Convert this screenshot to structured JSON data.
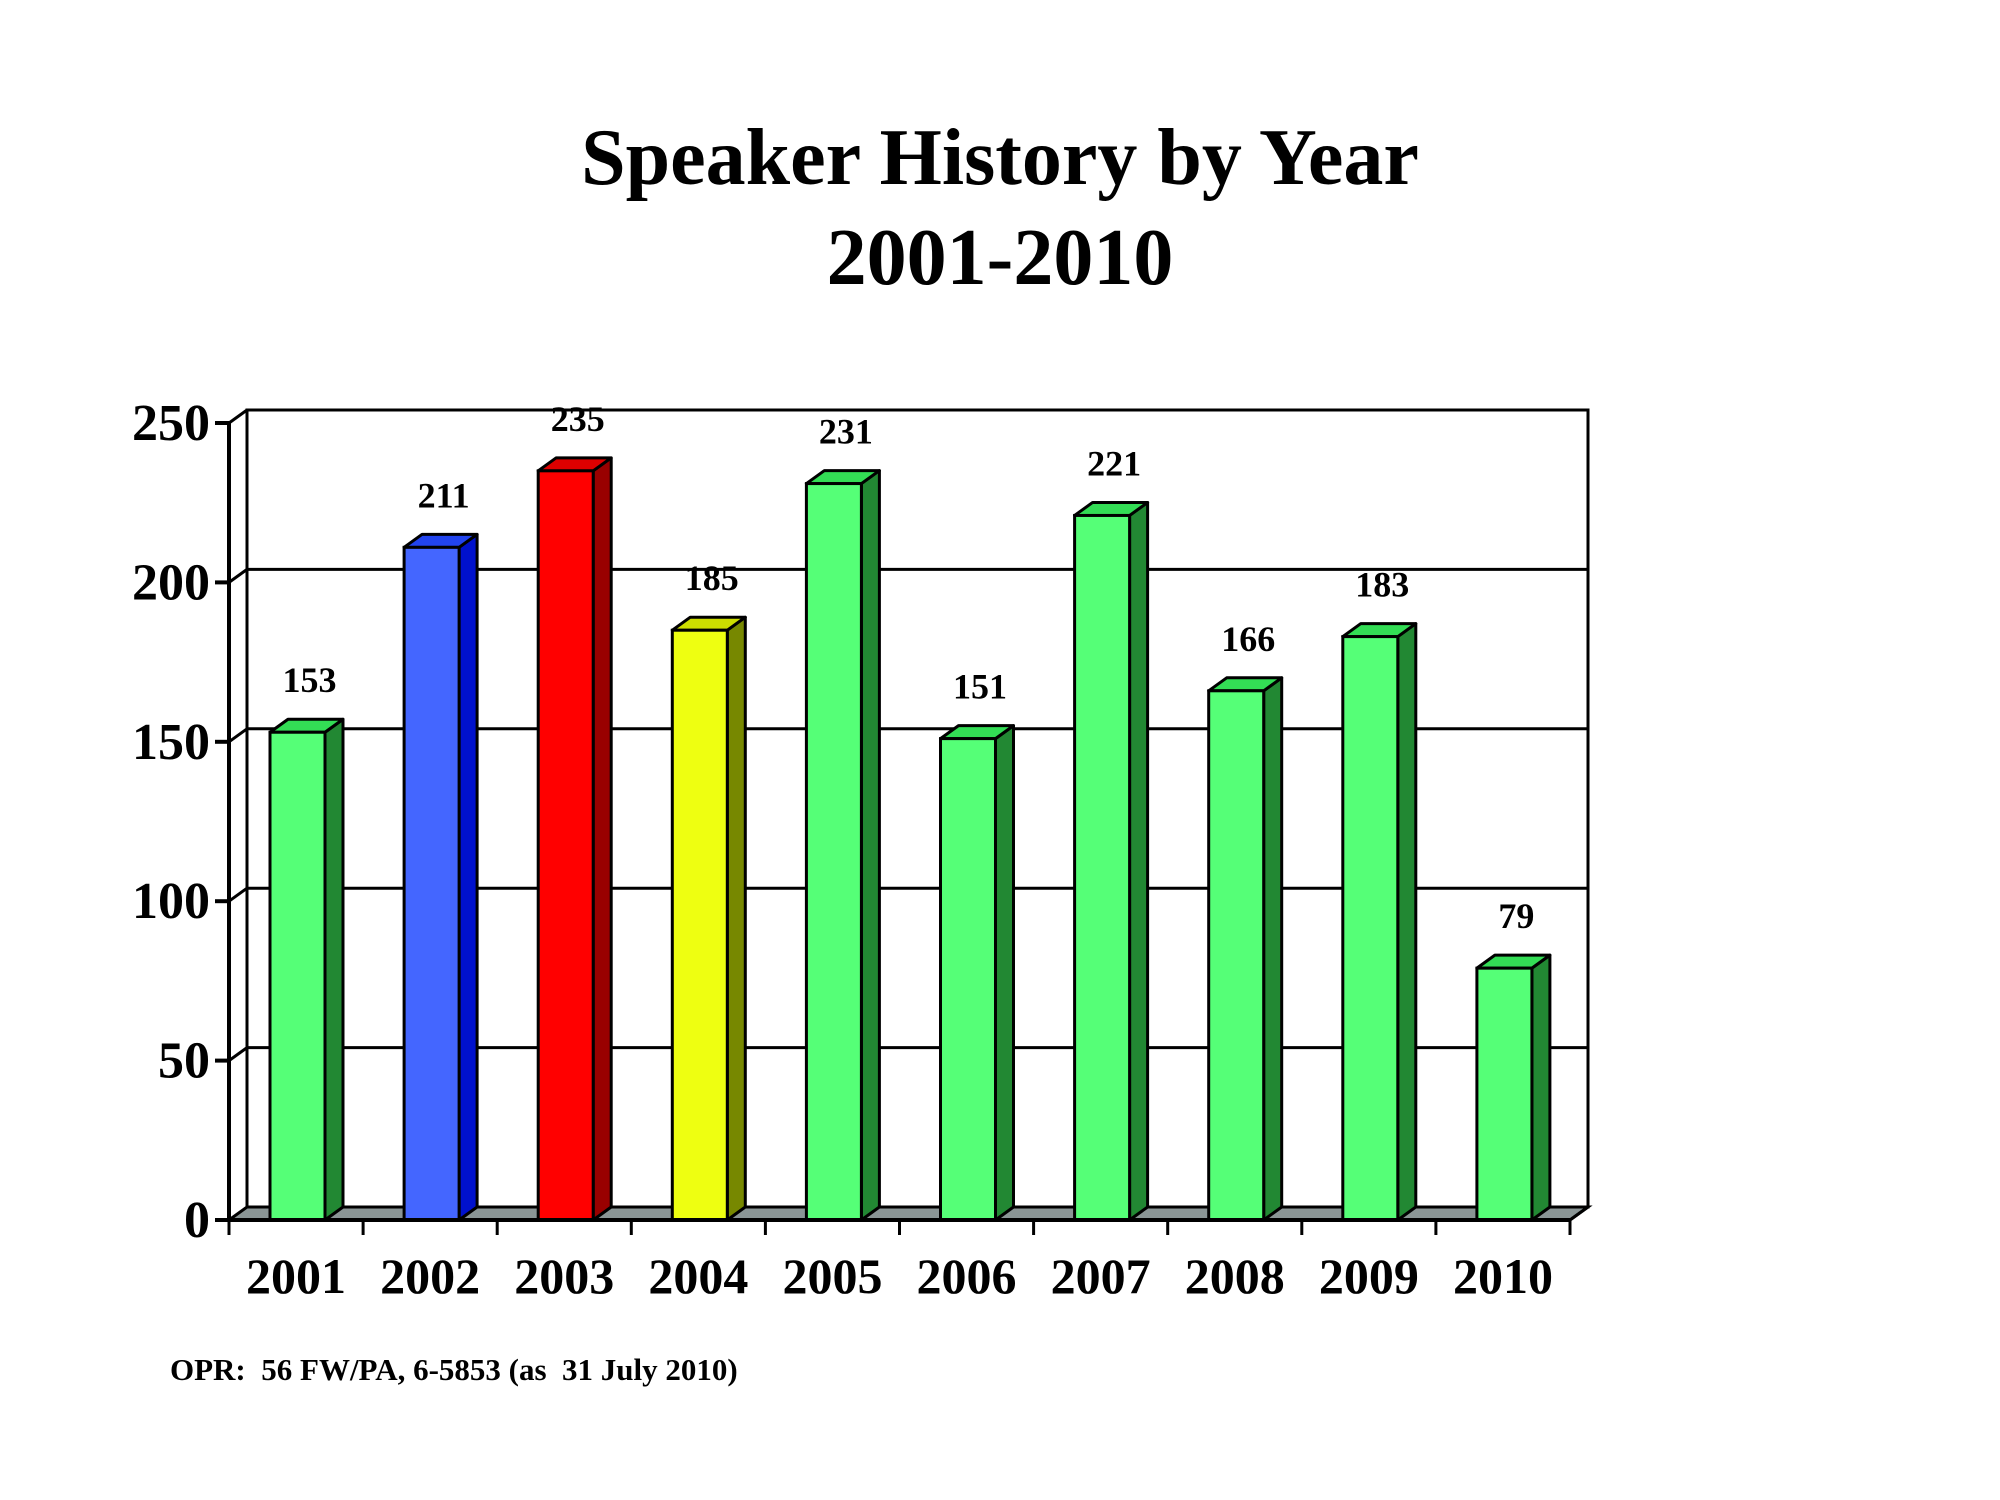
{
  "title": {
    "line1": "Speaker History by Year",
    "line2": "2001-2010"
  },
  "footer": {
    "note": "OPR:  56 FW/PA, 6-5853 (as  31 July 2010)"
  },
  "colors": {
    "green": {
      "front": "#55FF77",
      "top": "#33DD55",
      "side": "#228833"
    },
    "blue": {
      "front": "#4466FF",
      "top": "#2244EE",
      "side": "#0011CC"
    },
    "red": {
      "front": "#FF0000",
      "top": "#DD0000",
      "side": "#990000"
    },
    "yellow": {
      "front": "#EEFF11",
      "top": "#CCDD00",
      "side": "#778800"
    },
    "floor": "#8A9595",
    "grid": "#000000"
  },
  "chart_data": {
    "type": "bar",
    "title": "Speaker History by Year 2001-2010",
    "xlabel": "",
    "ylabel": "",
    "categories": [
      "2001",
      "2002",
      "2003",
      "2004",
      "2005",
      "2006",
      "2007",
      "2008",
      "2009",
      "2010"
    ],
    "values": [
      153,
      211,
      235,
      185,
      231,
      151,
      221,
      166,
      183,
      79
    ],
    "bar_colors": [
      "green",
      "blue",
      "red",
      "yellow",
      "green",
      "green",
      "green",
      "green",
      "green",
      "green"
    ],
    "data_labels": [
      "153",
      "211",
      "235",
      "185",
      "231",
      "151",
      "221",
      "166",
      "183",
      "79"
    ],
    "ylim": [
      0,
      250
    ],
    "yticks": [
      0,
      50,
      100,
      150,
      200,
      250
    ],
    "grid": true,
    "legend": null,
    "style": "3d-column",
    "annotation": "OPR:  56 FW/PA, 6-5853 (as  31 July 2010)"
  }
}
